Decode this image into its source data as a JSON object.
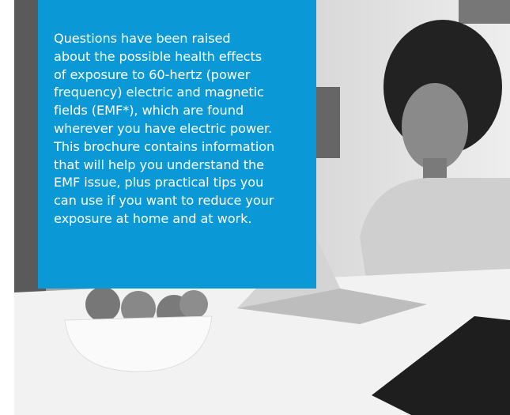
{
  "text_box": {
    "lines": [
      "Questions have been raised",
      "about the possible health effects",
      "of exposure to 60-hertz (power",
      "frequency) electric and magnetic",
      "fields (EMF*), which are found",
      "wherever you have electric power.",
      "This brochure contains information",
      "that will help you understand the",
      "EMF issue, plus practical tips you",
      "can use if you want to reduce your",
      "exposure at home and at work."
    ]
  }
}
